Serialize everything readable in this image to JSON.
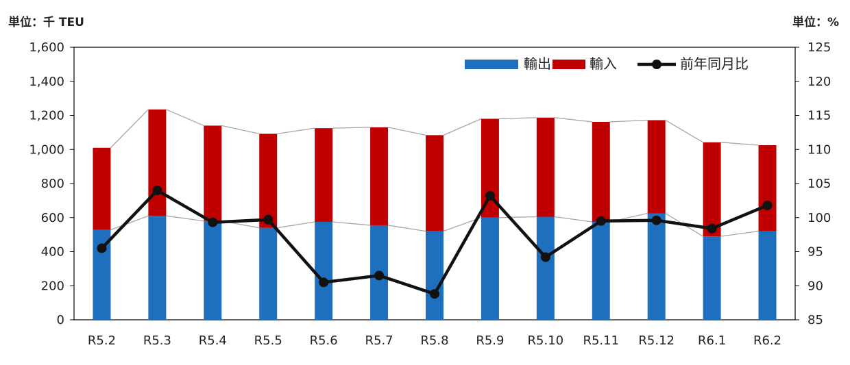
{
  "units": {
    "left": "単位：千 TEU",
    "right": "単位：%"
  },
  "chart_data": {
    "type": "bar",
    "stacked": true,
    "categories": [
      "R5.2",
      "R5.3",
      "R5.4",
      "R5.5",
      "R5.6",
      "R5.7",
      "R5.8",
      "R5.9",
      "R5.10",
      "R5.11",
      "R5.12",
      "R6.1",
      "R6.2"
    ],
    "series": [
      {
        "name": "輸出",
        "axis": "left",
        "type": "bar",
        "color": "#1f6fbf",
        "values": [
          528,
          610,
          580,
          540,
          575,
          555,
          520,
          600,
          605,
          575,
          625,
          490,
          520
        ]
      },
      {
        "name": "輸入",
        "axis": "left",
        "type": "bar",
        "color": "#c00000",
        "values": [
          482,
          625,
          560,
          552,
          550,
          575,
          564,
          580,
          582,
          587,
          547,
          552,
          505
        ]
      },
      {
        "name": "前年同月比",
        "axis": "right",
        "type": "line",
        "color": "#111111",
        "values": [
          95.5,
          104.0,
          99.3,
          99.7,
          90.5,
          91.5,
          88.8,
          103.2,
          94.2,
          99.5,
          99.6,
          98.4,
          101.8
        ]
      }
    ],
    "y_left": {
      "lim": [
        0,
        1600
      ],
      "ticks": [
        "0",
        "200",
        "400",
        "600",
        "800",
        "1,000",
        "1,200",
        "1,400",
        "1,600"
      ]
    },
    "y_right": {
      "lim": [
        85,
        125
      ],
      "ticks": [
        "85",
        "90",
        "95",
        "100",
        "105",
        "110",
        "115",
        "120",
        "125"
      ]
    },
    "legend": {
      "position": "top-right",
      "items": [
        "輸出",
        "輸入",
        "前年同月比"
      ]
    },
    "grid": false
  }
}
